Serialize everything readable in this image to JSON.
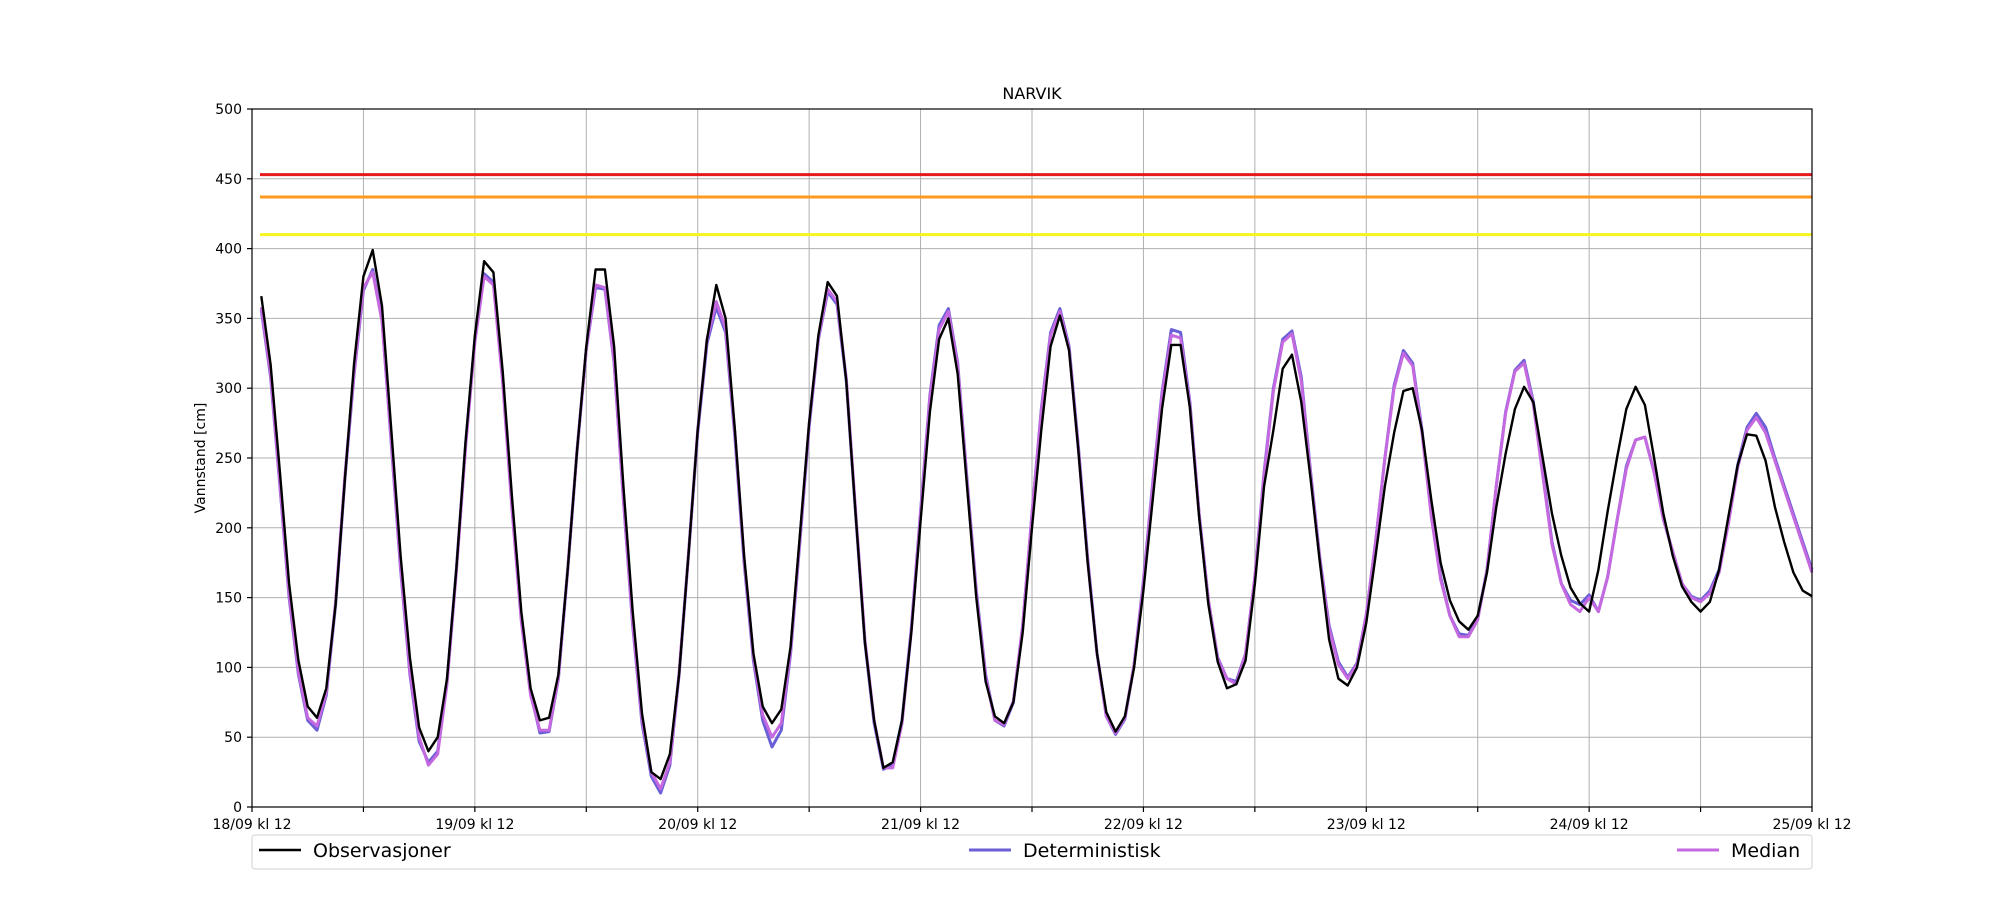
{
  "chart_data": {
    "type": "line",
    "title": "NARVIK",
    "xlabel": "",
    "ylabel": "Vannstand [cm]",
    "ylim": [
      0,
      500
    ],
    "xlim": [
      0,
      168
    ],
    "x_unit": "hours since 18/09 kl 12",
    "yticks": [
      0,
      50,
      100,
      150,
      200,
      250,
      300,
      350,
      400,
      450,
      500
    ],
    "xticks": [
      {
        "hours": 0,
        "label": "18/09 kl 12"
      },
      {
        "hours": 12,
        "label": ""
      },
      {
        "hours": 24,
        "label": "19/09 kl 12"
      },
      {
        "hours": 36,
        "label": ""
      },
      {
        "hours": 48,
        "label": "20/09 kl 12"
      },
      {
        "hours": 60,
        "label": ""
      },
      {
        "hours": 72,
        "label": "21/09 kl 12"
      },
      {
        "hours": 84,
        "label": ""
      },
      {
        "hours": 96,
        "label": "22/09 kl 12"
      },
      {
        "hours": 108,
        "label": ""
      },
      {
        "hours": 120,
        "label": "23/09 kl 12"
      },
      {
        "hours": 132,
        "label": ""
      },
      {
        "hours": 144,
        "label": "24/09 kl 12"
      },
      {
        "hours": 156,
        "label": ""
      },
      {
        "hours": 168,
        "label": "25/09 kl 12"
      }
    ],
    "grid": true,
    "thresholds": [
      {
        "value": 453,
        "color": "#e41a1c"
      },
      {
        "value": 437,
        "color": "#ff9a1f"
      },
      {
        "value": 410,
        "color": "#f5f51e"
      }
    ],
    "series": [
      {
        "name": "Observasjoner",
        "color": "#000000",
        "x": [
          1,
          2,
          3,
          4,
          5,
          6,
          7,
          8,
          9,
          10,
          11,
          12,
          13,
          14,
          15,
          16,
          17,
          18,
          19,
          20,
          21,
          22,
          23,
          24,
          25,
          26,
          27,
          28,
          29,
          30,
          31,
          32,
          33,
          34,
          35,
          36,
          37,
          38,
          39,
          40,
          41,
          42,
          43,
          44,
          45,
          46,
          47,
          48,
          49,
          50,
          51,
          52,
          53,
          54,
          55,
          56,
          57,
          58,
          59,
          60,
          61,
          62,
          63,
          64,
          65,
          66,
          67,
          68,
          69,
          70,
          71,
          72,
          73,
          74,
          75,
          76,
          77,
          78,
          79,
          80,
          81,
          82,
          83,
          84,
          85,
          86,
          87,
          88,
          89,
          90,
          91,
          92,
          93,
          94,
          95,
          96,
          97,
          98,
          99,
          100,
          101,
          102,
          103,
          104,
          105,
          106,
          107,
          108,
          109,
          110,
          111,
          112,
          113,
          114,
          115,
          116,
          117,
          118,
          119,
          120,
          121,
          122,
          123,
          124,
          125,
          126,
          127,
          128,
          129,
          130,
          131,
          132,
          133,
          134,
          135,
          136,
          137,
          138,
          139,
          140,
          141,
          142,
          143,
          144,
          145,
          146,
          147,
          148,
          149,
          150,
          151,
          152,
          153,
          154,
          155,
          156,
          157,
          158,
          159,
          160,
          161,
          162,
          163,
          164,
          165,
          166,
          167,
          168
        ],
        "values": [
          366,
          317,
          240,
          160,
          105,
          72,
          64,
          85,
          145,
          235,
          318,
          380,
          399,
          359,
          270,
          180,
          107,
          57,
          40,
          50,
          92,
          170,
          262,
          338,
          391,
          383,
          312,
          222,
          140,
          85,
          62,
          64,
          95,
          170,
          255,
          330,
          385,
          385,
          330,
          230,
          140,
          67,
          25,
          20,
          38,
          95,
          180,
          270,
          335,
          374,
          350,
          270,
          180,
          110,
          72,
          60,
          70,
          115,
          195,
          275,
          338,
          376,
          366,
          305,
          210,
          118,
          62,
          28,
          32,
          62,
          125,
          205,
          283,
          335,
          350,
          310,
          230,
          150,
          90,
          65,
          60,
          75,
          125,
          200,
          270,
          330,
          352,
          327,
          255,
          175,
          110,
          68,
          54,
          65,
          100,
          155,
          220,
          285,
          331,
          331,
          286,
          208,
          145,
          104,
          85,
          88,
          105,
          160,
          230,
          270,
          314,
          324,
          290,
          235,
          175,
          120,
          92,
          87,
          100,
          132,
          180,
          230,
          268,
          298,
          300,
          270,
          220,
          175,
          148,
          133,
          127,
          137,
          168,
          215,
          253,
          285,
          301,
          290,
          250,
          210,
          180,
          157,
          146,
          140,
          170,
          212,
          250,
          285,
          301,
          288,
          250,
          210,
          180,
          158,
          147,
          140,
          147,
          170,
          208,
          245,
          267,
          266,
          248,
          215,
          190,
          168,
          155,
          151
        ]
      },
      {
        "name": "Deterministisk",
        "color": "#6a5fd6",
        "x": [
          1,
          2,
          3,
          4,
          5,
          6,
          7,
          8,
          9,
          10,
          11,
          12,
          13,
          14,
          15,
          16,
          17,
          18,
          19,
          20,
          21,
          22,
          23,
          24,
          25,
          26,
          27,
          28,
          29,
          30,
          31,
          32,
          33,
          34,
          35,
          36,
          37,
          38,
          39,
          40,
          41,
          42,
          43,
          44,
          45,
          46,
          47,
          48,
          49,
          50,
          51,
          52,
          53,
          54,
          55,
          56,
          57,
          58,
          59,
          60,
          61,
          62,
          63,
          64,
          65,
          66,
          67,
          68,
          69,
          70,
          71,
          72,
          73,
          74,
          75,
          76,
          77,
          78,
          79,
          80,
          81,
          82,
          83,
          84,
          85,
          86,
          87,
          88,
          89,
          90,
          91,
          92,
          93,
          94,
          95,
          96,
          97,
          98,
          99,
          100,
          101,
          102,
          103,
          104,
          105,
          106,
          107,
          108,
          109,
          110,
          111,
          112,
          113,
          114,
          115,
          116,
          117,
          118,
          119,
          120,
          121,
          122,
          123,
          124,
          125,
          126,
          127,
          128,
          129,
          130,
          131,
          132,
          133,
          134,
          135,
          136,
          137,
          138,
          139,
          140,
          141,
          142,
          143,
          144,
          145,
          146,
          147,
          148,
          149,
          150,
          151,
          152,
          153,
          154,
          155,
          156,
          157,
          158,
          159,
          160,
          161,
          162,
          163,
          164,
          165,
          166,
          167,
          168
        ],
        "values": [
          356,
          308,
          230,
          150,
          95,
          62,
          55,
          80,
          145,
          235,
          310,
          370,
          385,
          350,
          260,
          170,
          95,
          47,
          32,
          40,
          90,
          170,
          260,
          335,
          382,
          376,
          306,
          215,
          135,
          82,
          53,
          54,
          92,
          170,
          255,
          328,
          372,
          371,
          318,
          220,
          130,
          60,
          22,
          10,
          30,
          95,
          180,
          268,
          332,
          358,
          340,
          265,
          175,
          105,
          62,
          43,
          55,
          110,
          190,
          272,
          335,
          369,
          360,
          305,
          210,
          118,
          60,
          27,
          30,
          62,
          128,
          212,
          295,
          345,
          357,
          318,
          235,
          155,
          95,
          62,
          58,
          75,
          130,
          210,
          285,
          340,
          357,
          330,
          258,
          178,
          110,
          65,
          52,
          63,
          102,
          162,
          232,
          297,
          342,
          340,
          290,
          210,
          148,
          107,
          92,
          90,
          110,
          165,
          240,
          300,
          335,
          341,
          308,
          240,
          178,
          130,
          104,
          93,
          103,
          138,
          190,
          250,
          302,
          327,
          318,
          270,
          210,
          165,
          137,
          124,
          123,
          135,
          170,
          230,
          283,
          313,
          320,
          290,
          240,
          190,
          160,
          148,
          145,
          152,
          140,
          165,
          205,
          244,
          263,
          265,
          240,
          206,
          183,
          160,
          151,
          148,
          155,
          170,
          205,
          245,
          272,
          282,
          272,
          250,
          230,
          210,
          190,
          170
        ]
      },
      {
        "name": "Median",
        "color": "#c569e0",
        "x": [
          1,
          2,
          3,
          4,
          5,
          6,
          7,
          8,
          9,
          10,
          11,
          12,
          13,
          14,
          15,
          16,
          17,
          18,
          19,
          20,
          21,
          22,
          23,
          24,
          25,
          26,
          27,
          28,
          29,
          30,
          31,
          32,
          33,
          34,
          35,
          36,
          37,
          38,
          39,
          40,
          41,
          42,
          43,
          44,
          45,
          46,
          47,
          48,
          49,
          50,
          51,
          52,
          53,
          54,
          55,
          56,
          57,
          58,
          59,
          60,
          61,
          62,
          63,
          64,
          65,
          66,
          67,
          68,
          69,
          70,
          71,
          72,
          73,
          74,
          75,
          76,
          77,
          78,
          79,
          80,
          81,
          82,
          83,
          84,
          85,
          86,
          87,
          88,
          89,
          90,
          91,
          92,
          93,
          94,
          95,
          96,
          97,
          98,
          99,
          100,
          101,
          102,
          103,
          104,
          105,
          106,
          107,
          108,
          109,
          110,
          111,
          112,
          113,
          114,
          115,
          116,
          117,
          118,
          119,
          120,
          121,
          122,
          123,
          124,
          125,
          126,
          127,
          128,
          129,
          130,
          131,
          132,
          133,
          134,
          135,
          136,
          137,
          138,
          139,
          140,
          141,
          142,
          143,
          144,
          145,
          146,
          147,
          148,
          149,
          150,
          151,
          152,
          153,
          154,
          155,
          156,
          157,
          158,
          159,
          160,
          161,
          162,
          163,
          164,
          165,
          166,
          167,
          168
        ],
        "values": [
          358,
          310,
          232,
          152,
          97,
          64,
          58,
          82,
          147,
          237,
          312,
          372,
          383,
          348,
          262,
          172,
          97,
          50,
          30,
          38,
          88,
          168,
          258,
          333,
          380,
          374,
          304,
          213,
          133,
          80,
          55,
          55,
          93,
          170,
          255,
          328,
          374,
          372,
          319,
          221,
          132,
          63,
          25,
          13,
          32,
          96,
          180,
          270,
          335,
          362,
          343,
          268,
          178,
          108,
          66,
          50,
          60,
          112,
          192,
          274,
          336,
          371,
          362,
          307,
          212,
          120,
          62,
          28,
          28,
          60,
          126,
          210,
          293,
          342,
          355,
          316,
          233,
          153,
          93,
          62,
          59,
          76,
          130,
          210,
          283,
          338,
          355,
          328,
          256,
          176,
          110,
          65,
          53,
          64,
          102,
          160,
          230,
          295,
          338,
          336,
          288,
          210,
          148,
          106,
          92,
          88,
          110,
          165,
          238,
          298,
          333,
          339,
          305,
          238,
          177,
          128,
          102,
          92,
          102,
          138,
          190,
          250,
          300,
          325,
          316,
          268,
          208,
          163,
          137,
          122,
          122,
          134,
          170,
          230,
          282,
          312,
          318,
          288,
          238,
          188,
          160,
          145,
          140,
          150,
          140,
          165,
          205,
          242,
          263,
          265,
          240,
          206,
          183,
          160,
          150,
          147,
          153,
          168,
          203,
          243,
          270,
          279,
          268,
          248,
          228,
          208,
          188,
          168
        ]
      }
    ],
    "legend": [
      "Observasjoner",
      "Deterministisk",
      "Median"
    ],
    "legend_position": "bottom"
  }
}
